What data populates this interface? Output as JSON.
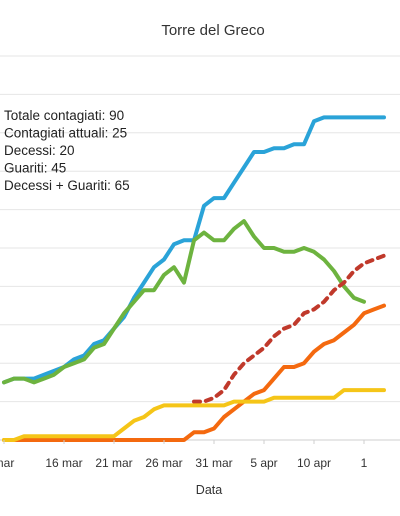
{
  "chart_data": {
    "type": "line",
    "title": "Torre del Greco",
    "xlabel": "Data",
    "ylabel": "",
    "xlim": [
      0,
      42
    ],
    "ylim": [
      0,
      100
    ],
    "grid": true,
    "x_ticks": [
      {
        "x": 0,
        "label": "mar"
      },
      {
        "x": 6,
        "label": "16 mar"
      },
      {
        "x": 11,
        "label": "21 mar"
      },
      {
        "x": 16,
        "label": "26 mar"
      },
      {
        "x": 21,
        "label": "31 mar"
      },
      {
        "x": 26,
        "label": "5 apr"
      },
      {
        "x": 31,
        "label": "10 apr"
      },
      {
        "x": 36,
        "label": "1"
      }
    ],
    "annotations": [
      "Totale contagiati: 90",
      "Contagiati attuali: 25",
      "Decessi: 20",
      "Guariti: 45",
      "Decessi + Guariti: 65"
    ],
    "series": [
      {
        "color": "#2aa3d8",
        "dash": "solid",
        "points": [
          [
            0,
            15
          ],
          [
            1,
            16
          ],
          [
            2,
            16
          ],
          [
            3,
            16
          ],
          [
            4,
            17
          ],
          [
            5,
            18
          ],
          [
            6,
            19
          ],
          [
            7,
            21
          ],
          [
            8,
            22
          ],
          [
            9,
            25
          ],
          [
            10,
            26
          ],
          [
            11,
            29
          ],
          [
            12,
            32
          ],
          [
            13,
            37
          ],
          [
            14,
            41
          ],
          [
            15,
            45
          ],
          [
            16,
            47
          ],
          [
            17,
            51
          ],
          [
            18,
            52
          ],
          [
            19,
            52
          ],
          [
            20,
            61
          ],
          [
            21,
            63
          ],
          [
            22,
            63
          ],
          [
            23,
            67
          ],
          [
            24,
            71
          ],
          [
            25,
            75
          ],
          [
            26,
            75
          ],
          [
            27,
            76
          ],
          [
            28,
            76
          ],
          [
            29,
            77
          ],
          [
            30,
            77
          ],
          [
            31,
            83
          ],
          [
            32,
            84
          ],
          [
            33,
            84
          ],
          [
            34,
            84
          ],
          [
            35,
            84
          ],
          [
            36,
            84
          ],
          [
            37,
            84
          ],
          [
            38,
            84
          ]
        ]
      },
      {
        "color": "#6db33f",
        "dash": "solid",
        "points": [
          [
            0,
            15
          ],
          [
            1,
            16
          ],
          [
            2,
            16
          ],
          [
            3,
            15
          ],
          [
            4,
            16
          ],
          [
            5,
            17
          ],
          [
            6,
            19
          ],
          [
            7,
            20
          ],
          [
            8,
            21
          ],
          [
            9,
            24
          ],
          [
            10,
            25
          ],
          [
            11,
            29
          ],
          [
            12,
            33
          ],
          [
            13,
            36
          ],
          [
            14,
            39
          ],
          [
            15,
            39
          ],
          [
            16,
            43
          ],
          [
            17,
            45
          ],
          [
            18,
            41
          ],
          [
            19,
            52
          ],
          [
            20,
            54
          ],
          [
            21,
            52
          ],
          [
            22,
            52
          ],
          [
            23,
            55
          ],
          [
            24,
            57
          ],
          [
            25,
            53
          ],
          [
            26,
            50
          ],
          [
            27,
            50
          ],
          [
            28,
            49
          ],
          [
            29,
            49
          ],
          [
            30,
            50
          ],
          [
            31,
            49
          ],
          [
            32,
            47
          ],
          [
            33,
            44
          ],
          [
            34,
            40
          ],
          [
            35,
            37
          ],
          [
            36,
            36
          ]
        ]
      },
      {
        "color": "#c0392b",
        "dash": "dashed",
        "points": [
          [
            19,
            10
          ],
          [
            20,
            10
          ],
          [
            21,
            11
          ],
          [
            22,
            13
          ],
          [
            23,
            17
          ],
          [
            24,
            20
          ],
          [
            25,
            22
          ],
          [
            26,
            24
          ],
          [
            27,
            27
          ],
          [
            28,
            29
          ],
          [
            29,
            30
          ],
          [
            30,
            33
          ],
          [
            31,
            34
          ],
          [
            32,
            36
          ],
          [
            33,
            39
          ],
          [
            34,
            41
          ],
          [
            35,
            44
          ],
          [
            36,
            46
          ],
          [
            37,
            47
          ],
          [
            38,
            48
          ]
        ]
      },
      {
        "color": "#f4690f",
        "dash": "solid",
        "points": [
          [
            0,
            0
          ],
          [
            5,
            0
          ],
          [
            10,
            0
          ],
          [
            15,
            0
          ],
          [
            16,
            0
          ],
          [
            17,
            0
          ],
          [
            18,
            0
          ],
          [
            19,
            2
          ],
          [
            20,
            2
          ],
          [
            21,
            3
          ],
          [
            22,
            6
          ],
          [
            23,
            8
          ],
          [
            24,
            10
          ],
          [
            25,
            12
          ],
          [
            26,
            13
          ],
          [
            27,
            16
          ],
          [
            28,
            19
          ],
          [
            29,
            19
          ],
          [
            30,
            20
          ],
          [
            31,
            23
          ],
          [
            32,
            25
          ],
          [
            33,
            26
          ],
          [
            34,
            28
          ],
          [
            35,
            30
          ],
          [
            36,
            33
          ],
          [
            37,
            34
          ],
          [
            38,
            35
          ]
        ]
      },
      {
        "color": "#f5c518",
        "dash": "solid",
        "points": [
          [
            0,
            0
          ],
          [
            1,
            0
          ],
          [
            2,
            1
          ],
          [
            3,
            1
          ],
          [
            4,
            1
          ],
          [
            5,
            1
          ],
          [
            6,
            1
          ],
          [
            7,
            1
          ],
          [
            8,
            1
          ],
          [
            9,
            1
          ],
          [
            10,
            1
          ],
          [
            11,
            1
          ],
          [
            12,
            3
          ],
          [
            13,
            5
          ],
          [
            14,
            6
          ],
          [
            15,
            8
          ],
          [
            16,
            9
          ],
          [
            17,
            9
          ],
          [
            18,
            9
          ],
          [
            19,
            9
          ],
          [
            20,
            9
          ],
          [
            21,
            9
          ],
          [
            22,
            9
          ],
          [
            23,
            10
          ],
          [
            24,
            10
          ],
          [
            25,
            10
          ],
          [
            26,
            10
          ],
          [
            27,
            11
          ],
          [
            28,
            11
          ],
          [
            29,
            11
          ],
          [
            30,
            11
          ],
          [
            31,
            11
          ],
          [
            32,
            11
          ],
          [
            33,
            11
          ],
          [
            34,
            13
          ],
          [
            35,
            13
          ],
          [
            36,
            13
          ],
          [
            37,
            13
          ],
          [
            38,
            13
          ]
        ]
      }
    ]
  }
}
